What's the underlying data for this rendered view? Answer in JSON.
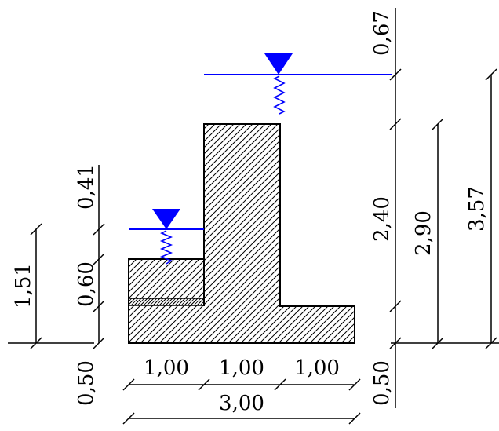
{
  "colors": {
    "line": "#000000",
    "water": "#0000ff",
    "hatch": "#000000",
    "background": "#ffffff"
  },
  "icons": [
    "water-level-triangle-icon",
    "water-wave-icon"
  ],
  "labels": {
    "left_0_50": "0,50",
    "left_0_60": "0,60",
    "left_0_41": "0,41",
    "left_1_51": "1,51",
    "bottom_seg1": "1,00",
    "bottom_seg2": "1,00",
    "bottom_seg3": "1,00",
    "bottom_total": "3,00",
    "right_0_50": "0,50",
    "right_2_40": "2,40",
    "right_0_67": "0,67",
    "right_2_90": "2,90",
    "right_3_57": "3,57"
  }
}
